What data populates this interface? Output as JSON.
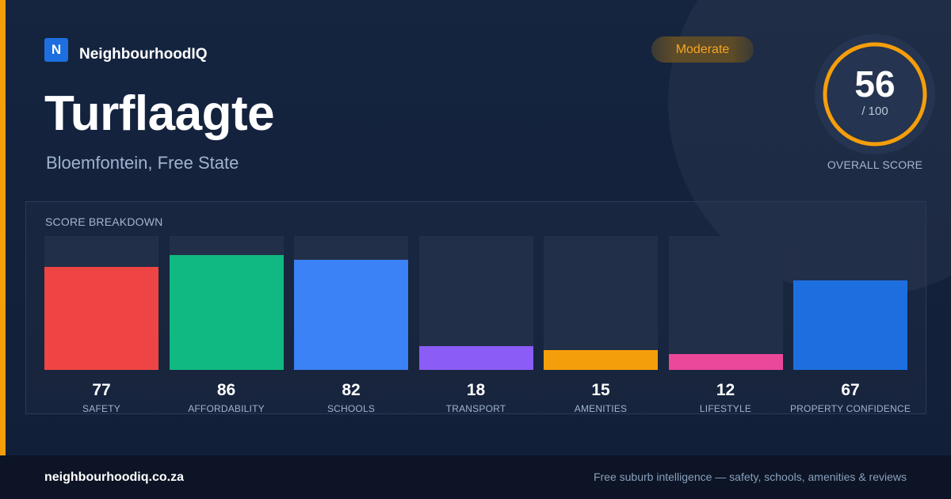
{
  "brand": {
    "logo_letter": "N",
    "name": "NeighbourhoodIQ"
  },
  "suburb": {
    "name": "Turflaagte",
    "location": "Bloemfontein, Free State"
  },
  "rating": {
    "label": "Moderate"
  },
  "overall": {
    "score": "56",
    "max_label": "/ 100",
    "value": 56,
    "max": 100,
    "caption": "OVERALL SCORE",
    "color": "#f59e0b"
  },
  "breakdown": {
    "title": "SCORE BREAKDOWN",
    "max": 100,
    "categories": [
      {
        "label": "SAFETY",
        "value": 77,
        "value_text": "77",
        "color": "#ef4444"
      },
      {
        "label": "AFFORDABILITY",
        "value": 86,
        "value_text": "86",
        "color": "#10b981"
      },
      {
        "label": "SCHOOLS",
        "value": 82,
        "value_text": "82",
        "color": "#3b82f6"
      },
      {
        "label": "TRANSPORT",
        "value": 18,
        "value_text": "18",
        "color": "#8b5cf6"
      },
      {
        "label": "AMENITIES",
        "value": 15,
        "value_text": "15",
        "color": "#f59e0b"
      },
      {
        "label": "LIFESTYLE",
        "value": 12,
        "value_text": "12",
        "color": "#ec4899"
      },
      {
        "label": "PROPERTY CONFIDENCE",
        "value": 67,
        "value_text": "67",
        "color": "#1d6fe0"
      }
    ]
  },
  "footer": {
    "url": "neighbourhoodiq.co.za",
    "tagline": "Free suburb intelligence — safety, schools, amenities & reviews"
  }
}
